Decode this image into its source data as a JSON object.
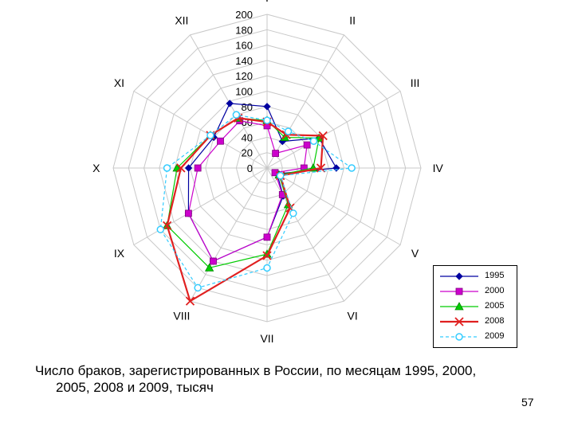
{
  "chart_data": {
    "type": "radar",
    "categories": [
      "I",
      "II",
      "III",
      "IV",
      "V",
      "VI",
      "VII",
      "VIII",
      "IX",
      "X",
      "XI",
      "XII"
    ],
    "rlim": [
      0,
      200
    ],
    "ticks": [
      "0",
      "20",
      "40",
      "60",
      "80",
      "100",
      "120",
      "140",
      "160",
      "180",
      "200"
    ],
    "grid": true,
    "legend": "bottom-right",
    "series": [
      {
        "name": "1995",
        "color": "#0000a0",
        "marker": "diamond",
        "values": [
          80,
          40,
          78,
          90,
          15,
          42,
          90,
          140,
          118,
          102,
          80,
          97
        ]
      },
      {
        "name": "2000",
        "color": "#cc00cc",
        "marker": "square",
        "values": [
          55,
          22,
          60,
          48,
          12,
          40,
          90,
          140,
          118,
          90,
          70,
          71
        ]
      },
      {
        "name": "2005",
        "color": "#00cc00",
        "marker": "triangle",
        "values": [
          62,
          46,
          78,
          60,
          18,
          55,
          112,
          150,
          150,
          117,
          85,
          75
        ]
      },
      {
        "name": "2008",
        "color": "#e02020",
        "marker": "x",
        "values": [
          60,
          50,
          84,
          70,
          20,
          60,
          114,
          200,
          150,
          112,
          85,
          75
        ]
      },
      {
        "name": "2009",
        "color": "#33ccff",
        "marker": "circle",
        "values": [
          62,
          55,
          70,
          110,
          20,
          68,
          130,
          180,
          160,
          130,
          85,
          80
        ]
      }
    ]
  },
  "caption": {
    "line1": "Число браков, зарегистрированных в России, по месяцам 1995, 2000,",
    "line2": "2005, 2008 и 2009, тысяч"
  },
  "page_number": "57"
}
